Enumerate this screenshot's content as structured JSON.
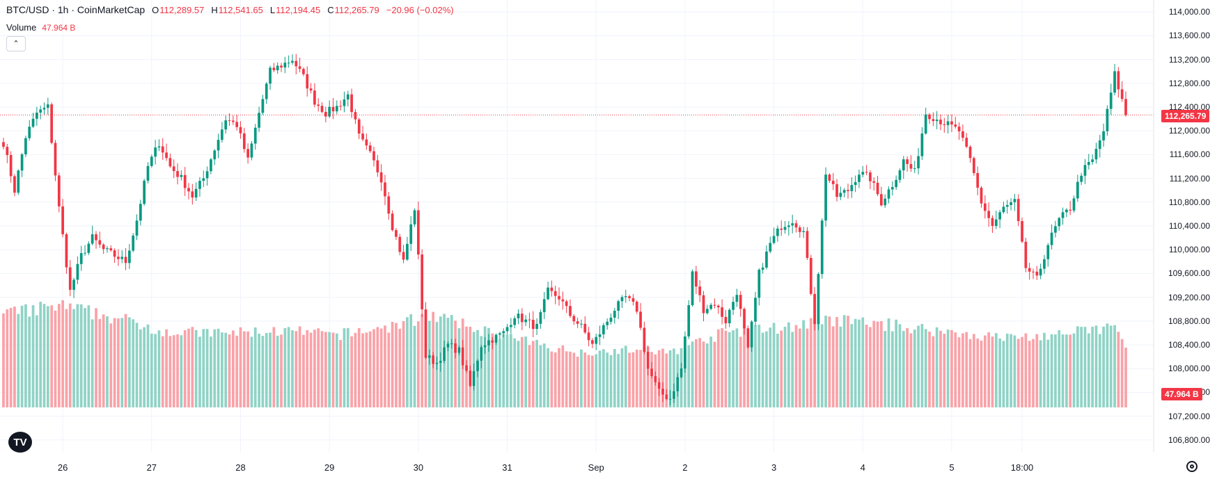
{
  "header": {
    "symbol": "BTC/USD · 1h · CoinMarketCap",
    "open_label": "O",
    "open": "112,289.57",
    "high_label": "H",
    "high": "112,541.65",
    "low_label": "L",
    "low": "112,194.45",
    "close_label": "C",
    "close": "112,265.79",
    "change": "−20.96 (−0.02%)"
  },
  "volume": {
    "name": "Volume",
    "value": "47.964 B"
  },
  "collapse_icon": "chevron-up-icon",
  "logo_text": "TV",
  "current_price_tag": "112,265.79",
  "volume_tag": "47.964 B",
  "colors": {
    "up": "#089981",
    "down": "#f23645",
    "vol_up": "#8fd3c6",
    "vol_down": "#f9a2a8"
  },
  "chart_data": {
    "type": "candlestick",
    "ylim": [
      106600,
      114200
    ],
    "y_ticks": [
      "114,000.00",
      "113,600.00",
      "113,200.00",
      "112,800.00",
      "112,400.00",
      "112,000.00",
      "111,600.00",
      "111,200.00",
      "110,800.00",
      "110,400.00",
      "110,000.00",
      "109,600.00",
      "109,200.00",
      "108,800.00",
      "108,400.00",
      "108,000.00",
      "107,600.00",
      "107,200.00",
      "106,800.00"
    ],
    "x_ticks": [
      "26",
      "27",
      "28",
      "29",
      "30",
      "31",
      "Sep",
      "2",
      "3",
      "4",
      "5",
      "18:00"
    ],
    "keyframes": [
      {
        "t": 0,
        "p": 111800
      },
      {
        "t": 3,
        "p": 111000
      },
      {
        "t": 6,
        "p": 111900
      },
      {
        "t": 9,
        "p": 112300
      },
      {
        "t": 12,
        "p": 112400
      },
      {
        "t": 15,
        "p": 110700
      },
      {
        "t": 18,
        "p": 109300
      },
      {
        "t": 21,
        "p": 109900
      },
      {
        "t": 24,
        "p": 110200
      },
      {
        "t": 27,
        "p": 110000
      },
      {
        "t": 30,
        "p": 109900
      },
      {
        "t": 33,
        "p": 109800
      },
      {
        "t": 36,
        "p": 110500
      },
      {
        "t": 39,
        "p": 111400
      },
      {
        "t": 42,
        "p": 111800
      },
      {
        "t": 45,
        "p": 111400
      },
      {
        "t": 48,
        "p": 111200
      },
      {
        "t": 51,
        "p": 110900
      },
      {
        "t": 54,
        "p": 111200
      },
      {
        "t": 57,
        "p": 111700
      },
      {
        "t": 60,
        "p": 112200
      },
      {
        "t": 63,
        "p": 112100
      },
      {
        "t": 66,
        "p": 111500
      },
      {
        "t": 69,
        "p": 112300
      },
      {
        "t": 72,
        "p": 113000
      },
      {
        "t": 75,
        "p": 113100
      },
      {
        "t": 78,
        "p": 113200
      },
      {
        "t": 81,
        "p": 112900
      },
      {
        "t": 84,
        "p": 112500
      },
      {
        "t": 87,
        "p": 112300
      },
      {
        "t": 90,
        "p": 112400
      },
      {
        "t": 93,
        "p": 112600
      },
      {
        "t": 96,
        "p": 111900
      },
      {
        "t": 99,
        "p": 111600
      },
      {
        "t": 102,
        "p": 111200
      },
      {
        "t": 105,
        "p": 110400
      },
      {
        "t": 108,
        "p": 109800
      },
      {
        "t": 111,
        "p": 110700
      },
      {
        "t": 114,
        "p": 108200
      },
      {
        "t": 117,
        "p": 108100
      },
      {
        "t": 120,
        "p": 108400
      },
      {
        "t": 123,
        "p": 108300
      },
      {
        "t": 126,
        "p": 107700
      },
      {
        "t": 129,
        "p": 108400
      },
      {
        "t": 132,
        "p": 108500
      },
      {
        "t": 135,
        "p": 108600
      },
      {
        "t": 138,
        "p": 108900
      },
      {
        "t": 141,
        "p": 108800
      },
      {
        "t": 144,
        "p": 108700
      },
      {
        "t": 147,
        "p": 109300
      },
      {
        "t": 150,
        "p": 109200
      },
      {
        "t": 153,
        "p": 108900
      },
      {
        "t": 156,
        "p": 108700
      },
      {
        "t": 159,
        "p": 108400
      },
      {
        "t": 162,
        "p": 108700
      },
      {
        "t": 165,
        "p": 109000
      },
      {
        "t": 168,
        "p": 109200
      },
      {
        "t": 171,
        "p": 109000
      },
      {
        "t": 174,
        "p": 108000
      },
      {
        "t": 177,
        "p": 107600
      },
      {
        "t": 180,
        "p": 107500
      },
      {
        "t": 183,
        "p": 108000
      },
      {
        "t": 186,
        "p": 109600
      },
      {
        "t": 189,
        "p": 109000
      },
      {
        "t": 192,
        "p": 109100
      },
      {
        "t": 195,
        "p": 108800
      },
      {
        "t": 198,
        "p": 109300
      },
      {
        "t": 201,
        "p": 108300
      },
      {
        "t": 204,
        "p": 109600
      },
      {
        "t": 207,
        "p": 110100
      },
      {
        "t": 210,
        "p": 110400
      },
      {
        "t": 213,
        "p": 110500
      },
      {
        "t": 216,
        "p": 110300
      },
      {
        "t": 219,
        "p": 108800
      },
      {
        "t": 222,
        "p": 111300
      },
      {
        "t": 225,
        "p": 110900
      },
      {
        "t": 228,
        "p": 111000
      },
      {
        "t": 231,
        "p": 111300
      },
      {
        "t": 234,
        "p": 111200
      },
      {
        "t": 237,
        "p": 110800
      },
      {
        "t": 240,
        "p": 111100
      },
      {
        "t": 243,
        "p": 111500
      },
      {
        "t": 246,
        "p": 111300
      },
      {
        "t": 249,
        "p": 112300
      },
      {
        "t": 252,
        "p": 112200
      },
      {
        "t": 255,
        "p": 112100
      },
      {
        "t": 258,
        "p": 112000
      },
      {
        "t": 261,
        "p": 111500
      },
      {
        "t": 264,
        "p": 110800
      },
      {
        "t": 267,
        "p": 110400
      },
      {
        "t": 270,
        "p": 110700
      },
      {
        "t": 273,
        "p": 110800
      },
      {
        "t": 276,
        "p": 109700
      },
      {
        "t": 279,
        "p": 109500
      },
      {
        "t": 282,
        "p": 110100
      },
      {
        "t": 285,
        "p": 110500
      },
      {
        "t": 288,
        "p": 110700
      },
      {
        "t": 291,
        "p": 111300
      },
      {
        "t": 294,
        "p": 111500
      },
      {
        "t": 297,
        "p": 112000
      },
      {
        "t": 300,
        "p": 112950
      },
      {
        "t": 303,
        "p": 112289
      }
    ],
    "volume_keyframes": [
      {
        "t": 0,
        "v": 1.6
      },
      {
        "t": 15,
        "v": 1.75
      },
      {
        "t": 30,
        "v": 1.55
      },
      {
        "t": 45,
        "v": 1.3
      },
      {
        "t": 60,
        "v": 1.28
      },
      {
        "t": 75,
        "v": 1.32
      },
      {
        "t": 90,
        "v": 1.25
      },
      {
        "t": 105,
        "v": 1.4
      },
      {
        "t": 115,
        "v": 1.6
      },
      {
        "t": 125,
        "v": 1.4
      },
      {
        "t": 140,
        "v": 1.15
      },
      {
        "t": 155,
        "v": 0.95
      },
      {
        "t": 170,
        "v": 1.0
      },
      {
        "t": 180,
        "v": 0.95
      },
      {
        "t": 195,
        "v": 1.3
      },
      {
        "t": 210,
        "v": 1.38
      },
      {
        "t": 225,
        "v": 1.5
      },
      {
        "t": 240,
        "v": 1.42
      },
      {
        "t": 255,
        "v": 1.3
      },
      {
        "t": 270,
        "v": 1.2
      },
      {
        "t": 285,
        "v": 1.25
      },
      {
        "t": 300,
        "v": 1.4
      },
      {
        "t": 303,
        "v": 1.0
      }
    ]
  }
}
